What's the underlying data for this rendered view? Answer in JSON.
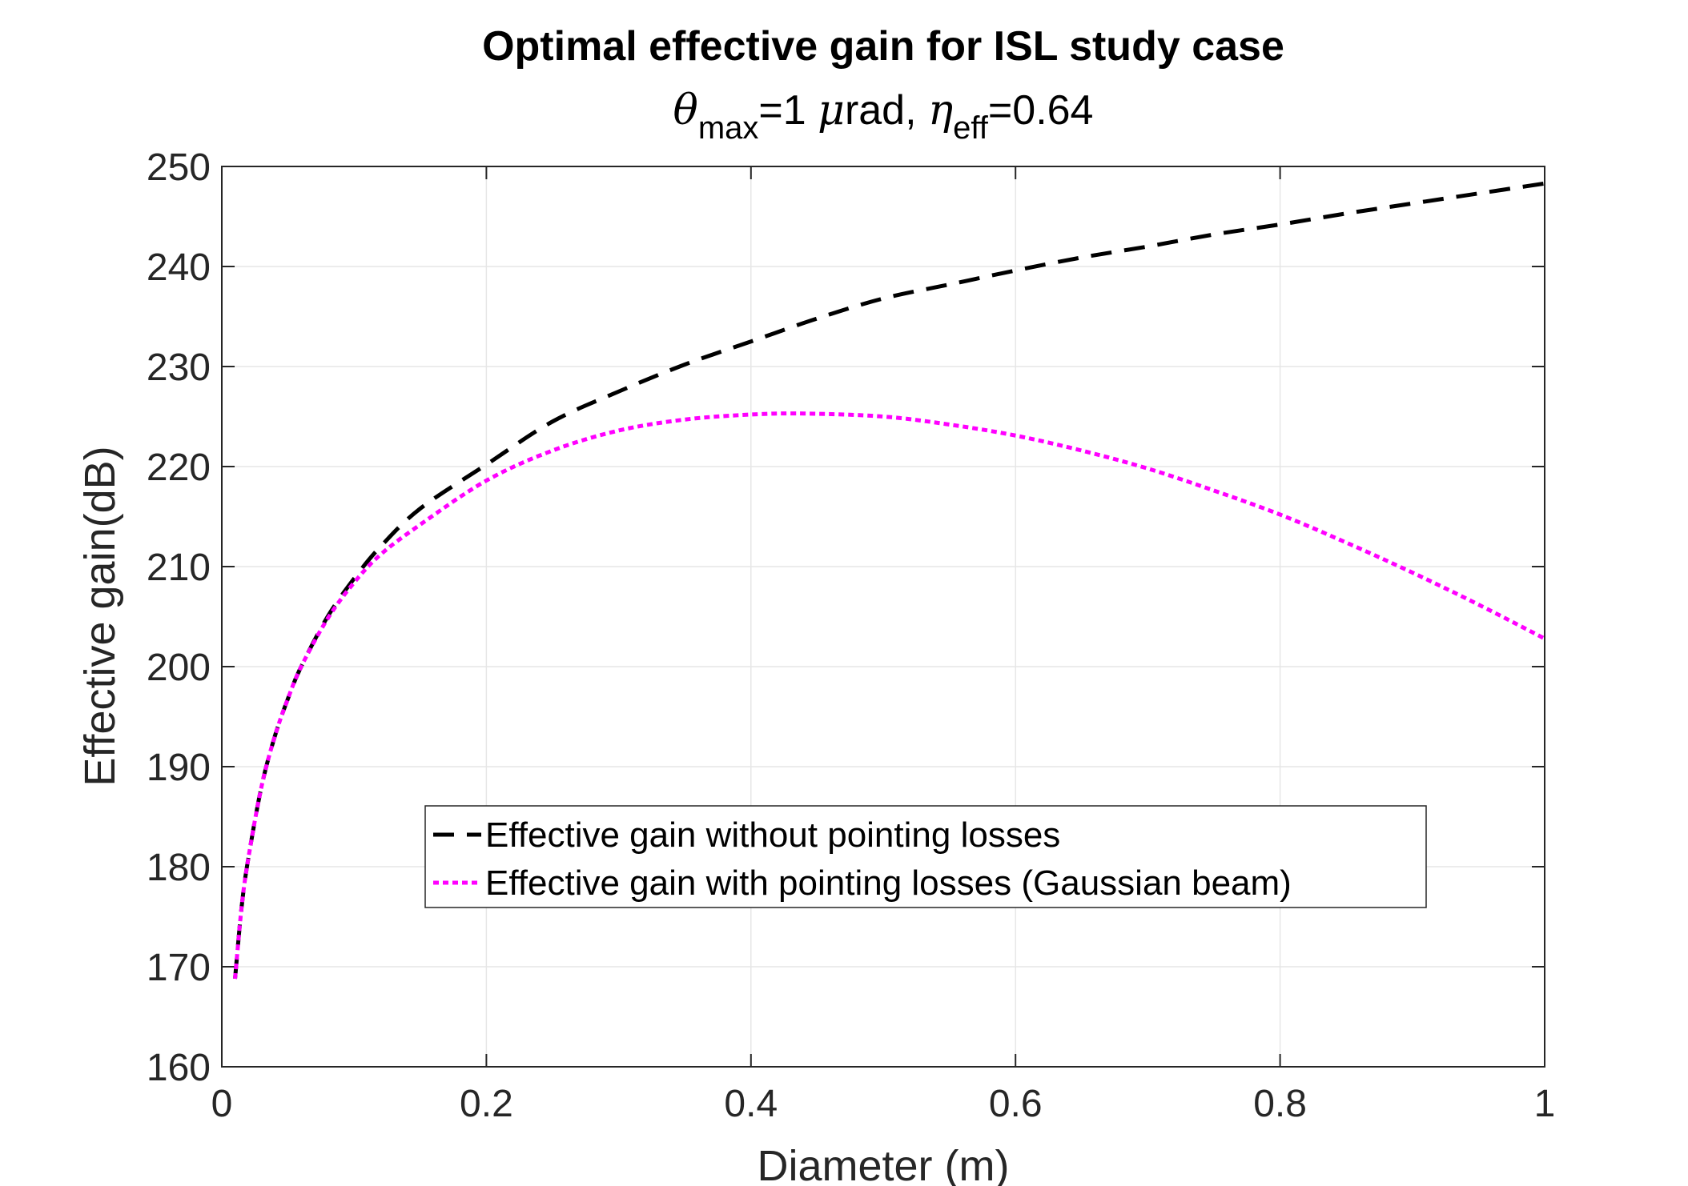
{
  "chart_data": {
    "type": "line",
    "title": "Optimal effective gain for ISL study case",
    "subtitle": {
      "theta_symbol": "θ",
      "theta_sub": "max",
      "theta_value": "=1 ",
      "mu_symbol": "μ",
      "unit_tail": "rad, ",
      "eta_symbol": "η",
      "eta_sub": "eff",
      "eta_value": "=0.64"
    },
    "xlabel": "Diameter (m)",
    "ylabel": "Effective gain(dB)",
    "xlim": [
      0,
      1
    ],
    "ylim": [
      160,
      250
    ],
    "xticks": [
      0,
      0.2,
      0.4,
      0.6,
      0.8,
      1
    ],
    "xtick_labels": [
      "0",
      "0.2",
      "0.4",
      "0.6",
      "0.8",
      "1"
    ],
    "yticks": [
      160,
      170,
      180,
      190,
      200,
      210,
      220,
      230,
      240,
      250
    ],
    "ytick_labels": [
      "160",
      "170",
      "180",
      "190",
      "200",
      "210",
      "220",
      "230",
      "240",
      "250"
    ],
    "grid": true,
    "legend_position": "lower-center",
    "series": [
      {
        "name": "Effective gain without pointing losses",
        "color": "#000000",
        "style": "dashed",
        "x": [
          0.01,
          0.015,
          0.02,
          0.03,
          0.04,
          0.05,
          0.06,
          0.08,
          0.1,
          0.12,
          0.15,
          0.2,
          0.25,
          0.3,
          0.35,
          0.4,
          0.45,
          0.5,
          0.55,
          0.6,
          0.65,
          0.7,
          0.75,
          0.8,
          0.85,
          0.9,
          0.95,
          1.0
        ],
        "values": [
          168.8,
          176.0,
          180.8,
          188.0,
          193.0,
          196.8,
          200.0,
          205.0,
          208.8,
          212.0,
          215.8,
          220.2,
          224.5,
          227.5,
          230.2,
          232.5,
          234.8,
          236.8,
          238.2,
          239.6,
          240.9,
          242.0,
          243.2,
          244.2,
          245.3,
          246.3,
          247.3,
          248.3
        ]
      },
      {
        "name": "Effective gain with pointing losses (Gaussian beam)",
        "color": "#ff00ff",
        "style": "dotted",
        "x": [
          0.01,
          0.015,
          0.02,
          0.03,
          0.04,
          0.05,
          0.06,
          0.08,
          0.1,
          0.12,
          0.15,
          0.2,
          0.25,
          0.3,
          0.35,
          0.4,
          0.44,
          0.5,
          0.55,
          0.6,
          0.65,
          0.7,
          0.75,
          0.8,
          0.85,
          0.9,
          0.95,
          1.0
        ],
        "values": [
          168.8,
          176.0,
          180.8,
          188.0,
          193.0,
          196.8,
          200.0,
          204.8,
          208.4,
          211.2,
          214.2,
          218.6,
          221.6,
          223.6,
          224.7,
          225.2,
          225.3,
          225.0,
          224.2,
          223.1,
          221.6,
          219.8,
          217.6,
          215.2,
          212.4,
          209.4,
          206.2,
          202.8
        ]
      }
    ]
  }
}
